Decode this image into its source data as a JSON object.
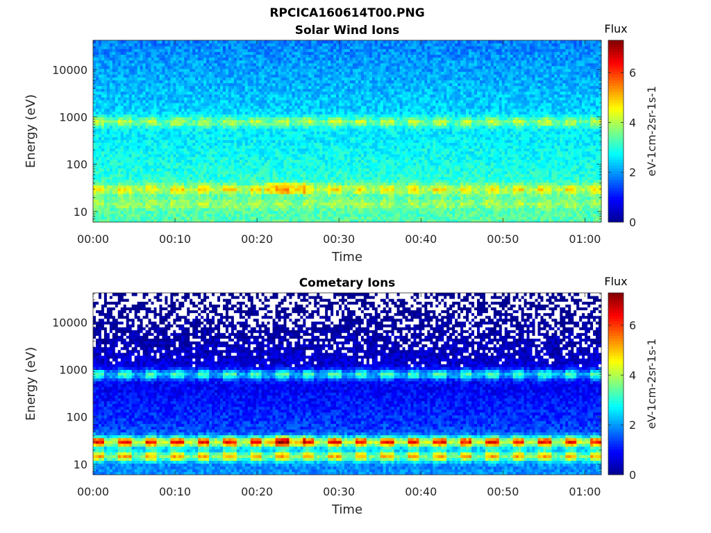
{
  "figure_title": "RPCICA160614T00.PNG",
  "colors": {
    "colormap": [
      "#00008f",
      "#0000ff",
      "#0080ff",
      "#00ffff",
      "#80ff80",
      "#ffff00",
      "#ff8000",
      "#ff0000",
      "#800000"
    ],
    "axis": "#262626",
    "background": "#ffffff"
  },
  "chart_data": [
    {
      "type": "heatmap",
      "title": "Solar Wind Ions",
      "xlabel": "Time",
      "ylabel": "Energy (eV)",
      "x_ticks": [
        "00:00",
        "00:10",
        "00:20",
        "00:30",
        "00:40",
        "00:50",
        "01:00"
      ],
      "x_tick_minutes": [
        0,
        10,
        20,
        30,
        40,
        50,
        60
      ],
      "xlim_minutes": [
        0,
        62
      ],
      "y_scale": "log",
      "y_ticks": [
        "10",
        "100",
        "1000",
        "10000"
      ],
      "y_tick_values": [
        10,
        100,
        1000,
        10000
      ],
      "ylim": [
        6,
        42000
      ],
      "colorbar": {
        "title": "Flux",
        "label": "eV-1cm-2sr-1s-1",
        "ticks": [
          "0",
          "2",
          "4",
          "6"
        ],
        "range": [
          0,
          7.3
        ]
      },
      "features": {
        "background_flux": 2.8,
        "bands": [
          {
            "energy_eV": 800,
            "flux": 4.4
          },
          {
            "energy_eV": 30,
            "flux": 4.4
          },
          {
            "energy_eV": 15,
            "flux": 3.6
          }
        ],
        "peak_flux": 5.4,
        "periodicity_minutes": 3.2
      }
    },
    {
      "type": "heatmap",
      "title": "Cometary Ions",
      "xlabel": "Time",
      "ylabel": "Energy (eV)",
      "x_ticks": [
        "00:00",
        "00:10",
        "00:20",
        "00:30",
        "00:40",
        "00:50",
        "01:00"
      ],
      "x_tick_minutes": [
        0,
        10,
        20,
        30,
        40,
        50,
        60
      ],
      "xlim_minutes": [
        0,
        62
      ],
      "y_scale": "log",
      "y_ticks": [
        "10",
        "100",
        "1000",
        "10000"
      ],
      "y_tick_values": [
        10,
        100,
        1000,
        10000
      ],
      "ylim": [
        6,
        42000
      ],
      "colorbar": {
        "title": "Flux",
        "label": "eV-1cm-2sr-1s-1",
        "ticks": [
          "0",
          "2",
          "4",
          "6"
        ],
        "range": [
          0,
          7.3
        ]
      },
      "features": {
        "background_flux": 1.0,
        "bands": [
          {
            "energy_eV": 800,
            "flux": 3.6
          },
          {
            "energy_eV": 30,
            "flux": 5.8
          },
          {
            "energy_eV": 15,
            "flux": 4.4
          }
        ],
        "peak_flux": 6.6,
        "periodicity_minutes": 3.2
      }
    }
  ]
}
